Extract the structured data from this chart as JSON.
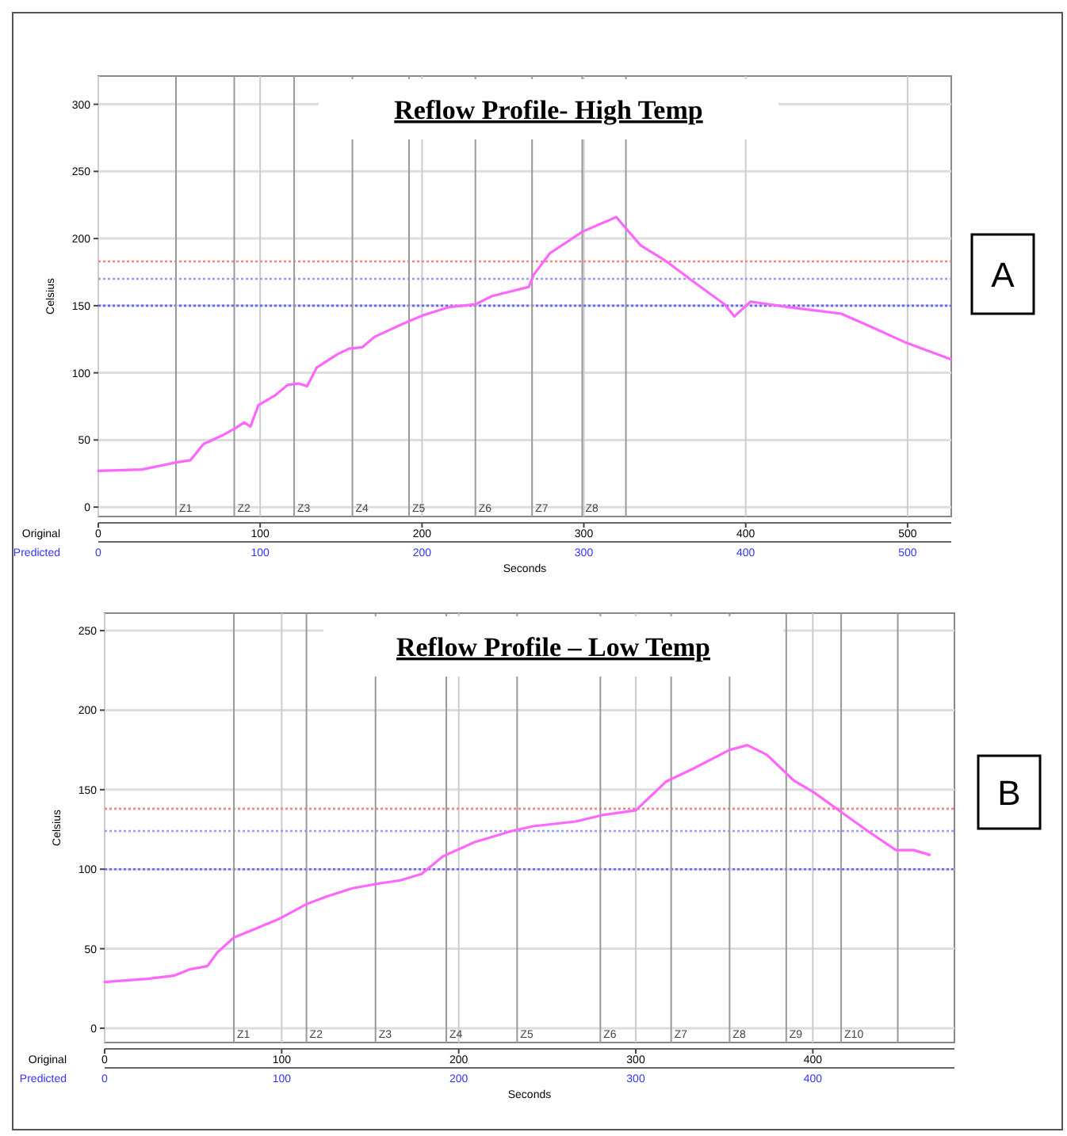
{
  "chart_data": [
    {
      "type": "line",
      "title": "Reflow Profile- High Temp",
      "xlabel": "Seconds",
      "ylabel": "Celsius",
      "x2label": "Predicted",
      "annotations": [
        "Original",
        "A"
      ],
      "xlim": [
        0,
        527
      ],
      "xticks": [
        0,
        100,
        200,
        300,
        400,
        500
      ],
      "x2lim": [
        0,
        527
      ],
      "x2ticks": [
        0,
        100,
        200,
        300,
        400,
        500
      ],
      "ylim": [
        -7,
        321
      ],
      "yticks": [
        0,
        50,
        100,
        150,
        200,
        250,
        300
      ],
      "grid": true,
      "marker": "none",
      "line_style": "solid",
      "ref_lines": [
        {
          "axis": "y",
          "value": 183,
          "label": null,
          "color": "#ff8080",
          "line_style": "dotted"
        },
        {
          "axis": "y",
          "value": 170,
          "label": null,
          "color": "#9999ff",
          "line_style": "dotted"
        },
        {
          "axis": "y",
          "value": 150,
          "label": null,
          "color": "#6666ff",
          "line_style": "dotted"
        },
        {
          "axis": "x",
          "value": 48,
          "label": "Z1"
        },
        {
          "axis": "x",
          "value": 84,
          "label": "Z2"
        },
        {
          "axis": "x",
          "value": 121,
          "label": "Z3"
        },
        {
          "axis": "x",
          "value": 157,
          "label": "Z4"
        },
        {
          "axis": "x",
          "value": 192,
          "label": "Z5"
        },
        {
          "axis": "x",
          "value": 233,
          "label": "Z6"
        },
        {
          "axis": "x",
          "value": 268,
          "label": "Z7"
        },
        {
          "axis": "x",
          "value": 299,
          "label": "Z8"
        },
        {
          "axis": "x",
          "value": 326,
          "label": null
        }
      ],
      "series": [
        {
          "color": "#ff66ff",
          "x": [
            0,
            27,
            47,
            57,
            65,
            76,
            85,
            90,
            94,
            99,
            109,
            117,
            124,
            129,
            135,
            148,
            155,
            163,
            171,
            191,
            201,
            217,
            233,
            243,
            256,
            266,
            269,
            279,
            299,
            320,
            335,
            351,
            371,
            387,
            393,
            403,
            426,
            459,
            478,
            498,
            527
          ],
          "values": [
            27,
            28,
            33,
            35,
            47,
            53,
            59,
            63,
            60,
            76,
            83,
            91,
            92,
            90,
            104,
            114,
            118,
            119,
            127,
            138,
            143,
            149,
            151,
            157,
            161,
            164,
            173,
            189,
            205,
            216,
            195,
            183,
            165,
            151,
            142,
            153,
            149,
            144,
            134,
            123,
            110
          ]
        }
      ]
    },
    {
      "type": "line",
      "title": "Reflow Profile – Low Temp",
      "xlabel": "Seconds",
      "ylabel": "Celsius",
      "x2label": "Predicted",
      "annotations": [
        "Original",
        "B"
      ],
      "xlim": [
        0,
        480
      ],
      "xticks": [
        0,
        100,
        200,
        300,
        400
      ],
      "x2lim": [
        0,
        480
      ],
      "x2ticks": [
        0,
        100,
        200,
        300,
        400
      ],
      "ylim": [
        -9,
        261
      ],
      "yticks": [
        0,
        50,
        100,
        150,
        200,
        250
      ],
      "grid": true,
      "marker": "none",
      "line_style": "solid",
      "ref_lines": [
        {
          "axis": "y",
          "value": 138,
          "label": null,
          "color": "#ff8080",
          "line_style": "dotted"
        },
        {
          "axis": "y",
          "value": 124,
          "label": null,
          "color": "#9999ff",
          "line_style": "dotted"
        },
        {
          "axis": "y",
          "value": 100,
          "label": null,
          "color": "#6666ff",
          "line_style": "dotted"
        },
        {
          "axis": "x",
          "value": 73,
          "label": "Z1"
        },
        {
          "axis": "x",
          "value": 114,
          "label": "Z2"
        },
        {
          "axis": "x",
          "value": 153,
          "label": "Z3"
        },
        {
          "axis": "x",
          "value": 193,
          "label": "Z4"
        },
        {
          "axis": "x",
          "value": 233,
          "label": "Z5"
        },
        {
          "axis": "x",
          "value": 280,
          "label": "Z6"
        },
        {
          "axis": "x",
          "value": 320,
          "label": "Z7"
        },
        {
          "axis": "x",
          "value": 353,
          "label": "Z8"
        },
        {
          "axis": "x",
          "value": 385,
          "label": "Z9"
        },
        {
          "axis": "x",
          "value": 416,
          "label": "Z10"
        },
        {
          "axis": "x",
          "value": 448,
          "label": null
        }
      ],
      "series": [
        {
          "color": "#ff66ff",
          "x": [
            0,
            24,
            39,
            48,
            58,
            64,
            73,
            84,
            99,
            114,
            126,
            140,
            155,
            167,
            179,
            191,
            209,
            230,
            242,
            266,
            281,
            300,
            317,
            332,
            353,
            363,
            374,
            389,
            401,
            416,
            431,
            447,
            457,
            466
          ],
          "values": [
            29,
            31,
            33,
            37,
            39,
            48,
            57,
            62,
            69,
            78,
            83,
            88,
            91,
            93,
            97,
            108,
            117,
            124,
            127,
            130,
            134,
            137,
            155,
            163,
            175,
            178,
            172,
            156,
            148,
            136,
            124,
            112,
            112,
            109
          ]
        }
      ]
    }
  ]
}
